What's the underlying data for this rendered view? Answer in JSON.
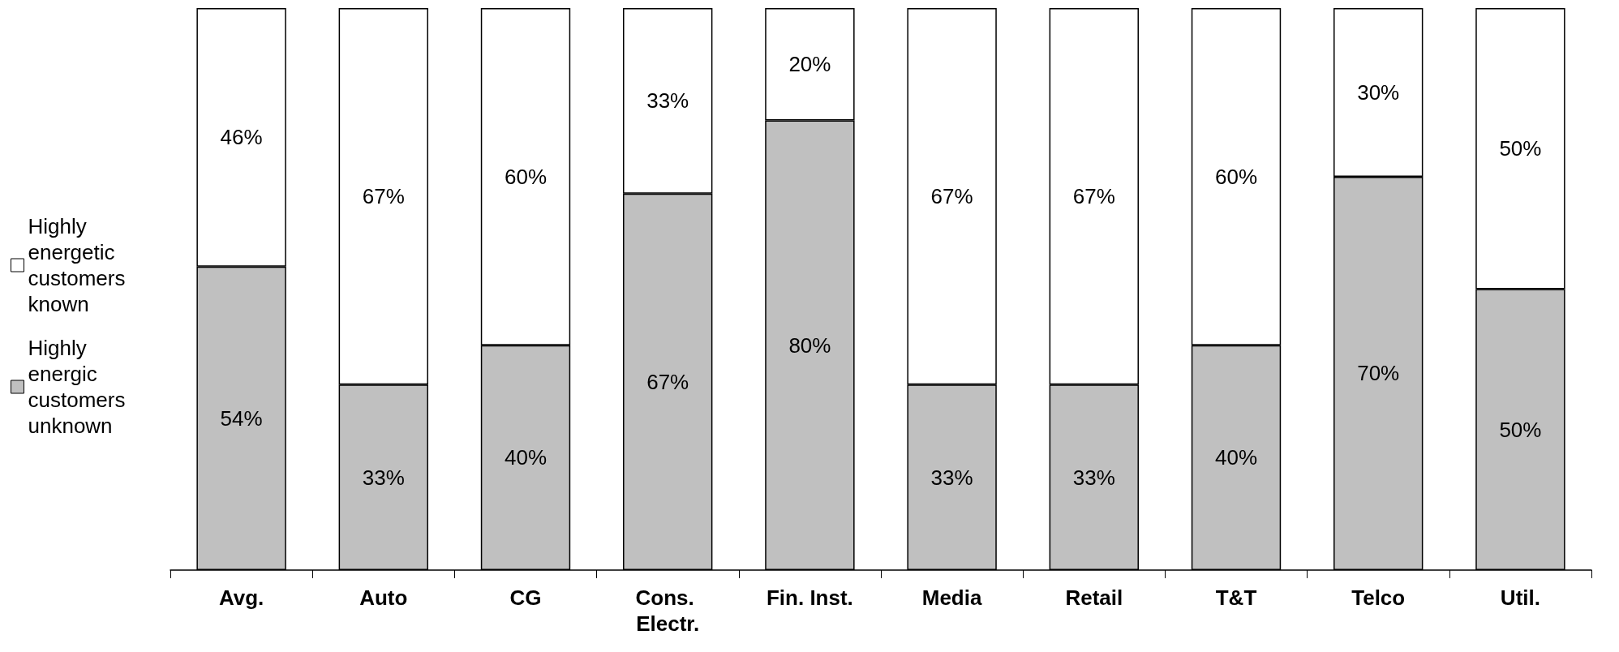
{
  "chart_data": {
    "type": "bar",
    "stacked": true,
    "categories": [
      "Avg.",
      "Auto",
      "CG",
      "Cons. Electr.",
      "Fin. Inst.",
      "Media",
      "Retail",
      "T&T",
      "Telco",
      "Util."
    ],
    "series": [
      {
        "name": "Highly energic customers unknown",
        "color": "#c0c0c0",
        "values": [
          54,
          33,
          40,
          67,
          80,
          33,
          33,
          40,
          70,
          50
        ],
        "value_labels": [
          "54%",
          "33%",
          "40%",
          "67%",
          "80%",
          "33%",
          "33%",
          "40%",
          "70%",
          "50%"
        ]
      },
      {
        "name": "Highly energetic customers known",
        "color": "#ffffff",
        "values": [
          46,
          67,
          60,
          33,
          20,
          67,
          67,
          60,
          30,
          50
        ],
        "value_labels": [
          "46%",
          "67%",
          "60%",
          "33%",
          "20%",
          "67%",
          "67%",
          "60%",
          "30%",
          "50%"
        ]
      }
    ],
    "ylim": [
      0,
      100
    ],
    "tick_labels": "x",
    "grid": false,
    "legend": "left"
  }
}
